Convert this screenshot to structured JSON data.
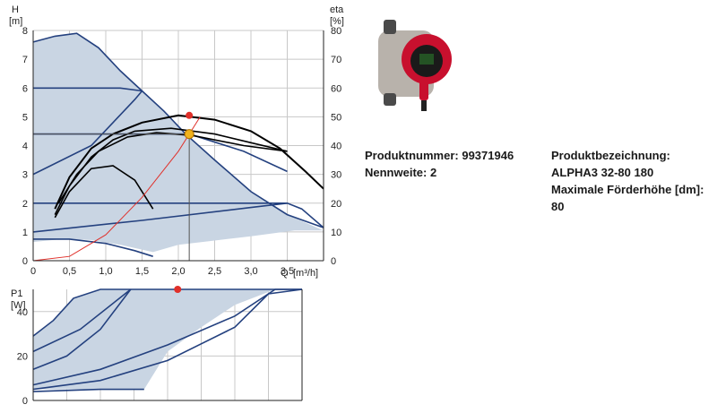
{
  "product": {
    "number_line": "Produktnummer: 99371946",
    "nominal_width_line": "Nennweite: 2",
    "designation_label": "Produktbezeichnung:",
    "designation_value": "ALPHA3 32-80 180",
    "max_head_label": "Maximale Förderhöhe [dm]:",
    "max_head_value": "80"
  },
  "photo": {
    "icon": "circulator-pump-photo",
    "colors": {
      "housing": "#b8b2ab",
      "motor": "#c8102e",
      "display": "#1a1a1a"
    }
  },
  "colors": {
    "region_fill": "#c9d5e3",
    "region_stroke": "#1f3f7f",
    "curve": "#24417f",
    "efficiency": "#000000",
    "system_curve": "#e0302a",
    "duty_point": "#e0302a",
    "op_point": "#f0b21c"
  },
  "chart_data": [
    {
      "type": "line",
      "title": "",
      "ylabel": "H",
      "yunit": "[m]",
      "y2label": "eta",
      "y2unit": "[%]",
      "xlabel": "Q",
      "xunit": "[m³/h]",
      "xlim": [
        0,
        4
      ],
      "ylim": [
        0,
        8
      ],
      "y2lim": [
        0,
        80
      ],
      "x_ticks": [
        "0",
        "0,5",
        "1,0",
        "1,5",
        "2,0",
        "2,5",
        "3,0",
        "3,5"
      ],
      "y_ticks": [
        "0",
        "1",
        "2",
        "3",
        "4",
        "5",
        "6",
        "7",
        "8"
      ],
      "y2_ticks": [
        "0",
        "10",
        "20",
        "30",
        "40",
        "50",
        "60",
        "70",
        "80"
      ],
      "grid": true,
      "region": [
        [
          0,
          7.6
        ],
        [
          0.3,
          7.8
        ],
        [
          0.6,
          7.9
        ],
        [
          0.9,
          7.4
        ],
        [
          1.2,
          6.6
        ],
        [
          1.5,
          5.9
        ],
        [
          1.8,
          5.2
        ],
        [
          2.1,
          4.4
        ],
        [
          2.5,
          3.5
        ],
        [
          3.0,
          2.4
        ],
        [
          3.5,
          1.6
        ],
        [
          4.0,
          1.05
        ],
        [
          3.6,
          1.05
        ],
        [
          3.0,
          0.85
        ],
        [
          2.5,
          0.7
        ],
        [
          2.0,
          0.55
        ],
        [
          1.65,
          0.3
        ],
        [
          1.2,
          0.55
        ],
        [
          0.8,
          0.72
        ],
        [
          0.4,
          0.75
        ],
        [
          0.2,
          0.7
        ],
        [
          0,
          0.65
        ]
      ],
      "series": [
        {
          "values": [
            [
              0,
              7.6
            ],
            [
              0.3,
              7.8
            ],
            [
              0.6,
              7.9
            ],
            [
              0.9,
              7.4
            ],
            [
              1.2,
              6.6
            ],
            [
              1.5,
              5.9
            ],
            [
              1.8,
              5.2
            ],
            [
              2.1,
              4.4
            ],
            [
              2.5,
              3.5
            ],
            [
              3.0,
              2.4
            ],
            [
              3.5,
              1.6
            ],
            [
              4.0,
              1.15
            ]
          ]
        },
        {
          "values": [
            [
              0,
              6.0
            ],
            [
              1.2,
              6.0
            ],
            [
              1.5,
              5.9
            ]
          ]
        },
        {
          "values": [
            [
              0,
              4.4
            ],
            [
              2.15,
              4.4
            ],
            [
              2.9,
              3.8
            ],
            [
              3.5,
              3.1
            ]
          ]
        },
        {
          "values": [
            [
              0,
              3.0
            ],
            [
              0.8,
              4.0
            ],
            [
              1.4,
              5.6
            ],
            [
              1.5,
              5.9
            ]
          ]
        },
        {
          "values": [
            [
              0,
              2.0
            ],
            [
              3.5,
              2.0
            ],
            [
              3.7,
              1.8
            ],
            [
              4.0,
              1.15
            ]
          ]
        },
        {
          "values": [
            [
              0,
              1.0
            ],
            [
              1.5,
              1.4
            ],
            [
              3.0,
              1.85
            ],
            [
              3.5,
              2.0
            ]
          ]
        },
        {
          "values": [
            [
              0,
              0.75
            ],
            [
              0.5,
              0.75
            ],
            [
              1.0,
              0.6
            ],
            [
              1.4,
              0.35
            ],
            [
              1.65,
              0.15
            ]
          ]
        }
      ],
      "efficiency_curves": [
        {
          "values": [
            [
              0.3,
              1.8
            ],
            [
              0.5,
              2.9
            ],
            [
              0.8,
              3.9
            ],
            [
              1.1,
              4.4
            ],
            [
              1.5,
              4.8
            ],
            [
              2.0,
              5.05
            ],
            [
              2.5,
              4.9
            ],
            [
              3.0,
              4.5
            ],
            [
              3.4,
              3.9
            ],
            [
              3.75,
              3.1
            ],
            [
              4.0,
              2.5
            ]
          ]
        },
        {
          "values": [
            [
              0.3,
              1.6
            ],
            [
              0.5,
              2.6
            ],
            [
              0.8,
              3.6
            ],
            [
              1.1,
              4.2
            ],
            [
              1.4,
              4.5
            ],
            [
              1.9,
              4.6
            ],
            [
              2.5,
              4.4
            ],
            [
              3.0,
              4.1
            ],
            [
              3.5,
              3.8
            ]
          ]
        },
        {
          "values": [
            [
              0.35,
              2.0
            ],
            [
              0.6,
              3.0
            ],
            [
              0.9,
              3.8
            ],
            [
              1.3,
              4.3
            ],
            [
              1.7,
              4.45
            ],
            [
              2.2,
              4.35
            ],
            [
              2.9,
              4.0
            ],
            [
              3.5,
              3.8
            ]
          ]
        },
        {
          "values": [
            [
              0.3,
              1.5
            ],
            [
              0.5,
              2.4
            ],
            [
              0.8,
              3.2
            ],
            [
              1.1,
              3.3
            ],
            [
              1.4,
              2.8
            ],
            [
              1.65,
              1.8
            ]
          ]
        }
      ],
      "system_curve": [
        [
          0,
          0
        ],
        [
          0.5,
          0.15
        ],
        [
          1.0,
          0.9
        ],
        [
          1.5,
          2.2
        ],
        [
          2.0,
          3.8
        ],
        [
          2.15,
          4.4
        ],
        [
          2.3,
          5.0
        ]
      ],
      "duty_point": {
        "x": 2.15,
        "y": 5.05
      },
      "operating_point": {
        "x": 2.15,
        "y": 4.4
      }
    },
    {
      "type": "line",
      "title": "",
      "ylabel": "P1",
      "yunit": "[W]",
      "xlim": [
        0,
        4
      ],
      "ylim": [
        0,
        50
      ],
      "y_ticks": [
        "0",
        "20",
        "40"
      ],
      "grid": true,
      "region": [
        [
          0,
          29
        ],
        [
          0.3,
          36
        ],
        [
          0.6,
          46
        ],
        [
          1.0,
          50
        ],
        [
          4.0,
          50
        ],
        [
          3.6,
          50
        ],
        [
          3.0,
          43
        ],
        [
          2.5,
          33
        ],
        [
          2.0,
          22
        ],
        [
          1.65,
          5
        ],
        [
          1.2,
          5
        ],
        [
          0.6,
          5
        ],
        [
          0,
          5
        ]
      ],
      "series": [
        {
          "values": [
            [
              0,
              29
            ],
            [
              0.3,
              36
            ],
            [
              0.6,
              46
            ],
            [
              1.0,
              50
            ],
            [
              4.0,
              50
            ]
          ]
        },
        {
          "values": [
            [
              0,
              22
            ],
            [
              0.7,
              32
            ],
            [
              1.45,
              50
            ]
          ]
        },
        {
          "values": [
            [
              0,
              14
            ],
            [
              0.5,
              20
            ],
            [
              1.0,
              32
            ],
            [
              1.45,
              50
            ]
          ]
        },
        {
          "values": [
            [
              0,
              7
            ],
            [
              1.0,
              14
            ],
            [
              2.0,
              25
            ],
            [
              3.0,
              38
            ],
            [
              3.6,
              50
            ],
            [
              4.0,
              50
            ]
          ]
        },
        {
          "values": [
            [
              0,
              5
            ],
            [
              1.0,
              9
            ],
            [
              2.0,
              18
            ],
            [
              3.0,
              33
            ],
            [
              3.5,
              48
            ],
            [
              4.0,
              50
            ]
          ]
        },
        {
          "values": [
            [
              0,
              4
            ],
            [
              1.0,
              5
            ],
            [
              1.65,
              5
            ]
          ]
        }
      ],
      "duty_point": {
        "x": 2.15,
        "y": 50
      }
    }
  ]
}
